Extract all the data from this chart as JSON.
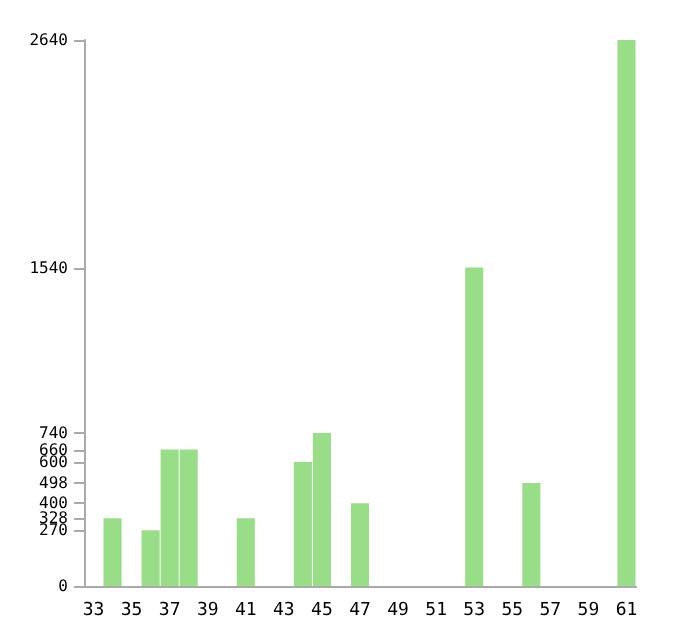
{
  "chart_data": {
    "type": "bar",
    "categories": [
      "33",
      null,
      "35",
      null,
      "37",
      null,
      "39",
      null,
      "41",
      null,
      "43",
      null,
      "45",
      null,
      "47",
      null,
      "49",
      null,
      "51",
      null,
      "53",
      null,
      "55",
      null,
      "57",
      null,
      "59",
      null,
      "61"
    ],
    "values": [
      0,
      328,
      0,
      270,
      660,
      660,
      0,
      0,
      328,
      0,
      0,
      600,
      740,
      0,
      400,
      0,
      0,
      0,
      0,
      0,
      1540,
      0,
      0,
      498,
      0,
      0,
      0,
      0,
      2640
    ],
    "color": "#99dd88",
    "ylim": [
      0,
      2640
    ],
    "yticks": [
      0,
      270,
      328,
      400,
      498,
      600,
      660,
      740,
      1540,
      2640
    ],
    "grid": false
  }
}
